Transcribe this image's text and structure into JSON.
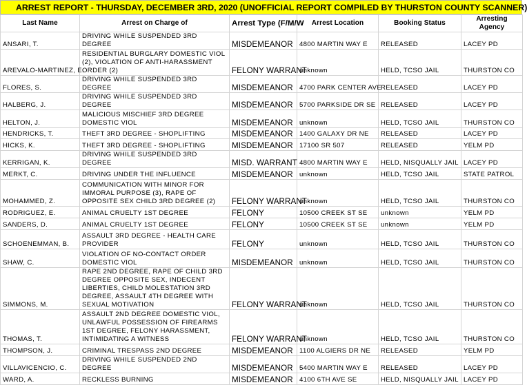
{
  "title": "ARREST REPORT - THURSDAY, DECEMBER 3RD, 2020  (UNOFFICIAL REPORT COMPILED BY THURSTON COUNTY SCANNER)",
  "header": [
    "Last Name",
    "Arrest on Charge of",
    "Arrest Type (F/M/W",
    "Arrest Location",
    "Booking Status",
    "Arresting Agency"
  ],
  "rows": [
    [
      "ANSARI, T.",
      "DRIVING WHILE SUSPENDED 3RD DEGREE",
      "MISDEMEANOR",
      "4800 MARTIN WAY E",
      "RELEASED",
      "LACEY PD"
    ],
    [
      "AREVALO-MARTINEZ, E.",
      "RESIDENTIAL BURGLARY DOMESTIC VIOL (2), VIOLATION OF ANTI-HARASSMENT ORDER (2)",
      "FELONY WARRANT",
      "unknown",
      "HELD, TCSO JAIL",
      "THURSTON CO"
    ],
    [
      "FLORES, S.",
      "DRIVING WHILE SUSPENDED 3RD DEGREE",
      "MISDEMEANOR",
      "4700 PARK CENTER AVE",
      "RELEASED",
      "LACEY PD"
    ],
    [
      "HALBERG, J.",
      "DRIVING WHILE SUSPENDED 3RD DEGREE",
      "MISDEMEANOR",
      "5700 PARKSIDE DR SE",
      "RELEASED",
      "LACEY PD"
    ],
    [
      "HELTON, J.",
      "MALICIOUS MISCHIEF 3RD DEGREE DOMESTIC VIOL",
      "MISDEMEANOR",
      "unknown",
      "HELD, TCSO JAIL",
      "THURSTON CO"
    ],
    [
      "HENDRICKS, T.",
      "THEFT 3RD DEGREE - SHOPLIFTING",
      "MISDEMEANOR",
      "1400 GALAXY DR NE",
      "RELEASED",
      "LACEY PD"
    ],
    [
      "HICKS, K.",
      "THEFT 3RD DEGREE - SHOPLIFTING",
      "MISDEMEANOR",
      "17100 SR 507",
      "RELEASED",
      "YELM PD"
    ],
    [
      "KERRIGAN, K.",
      "DRIVING WHILE SUSPENDED 3RD DEGREE",
      "MISD. WARRANT",
      "4800 MARTIN WAY E",
      "HELD, NISQUALLY JAIL",
      "LACEY PD"
    ],
    [
      "MERKT, C.",
      "DRIVING UNDER THE INFLUENCE",
      "MISDEMEANOR",
      "unknown",
      "HELD, TCSO JAIL",
      "STATE PATROL"
    ],
    [
      "MOHAMMED, Z.",
      "COMMUNICATION WITH MINOR FOR IMMORAL PURPOSE (3), RAPE OF OPPOSITE SEX CHILD 3RD DEGREE (2)",
      "FELONY WARRANT",
      "unknown",
      "HELD, TCSO JAIL",
      "THURSTON CO"
    ],
    [
      "RODRIGUEZ, E.",
      "ANIMAL CRUELTY 1ST DEGREE",
      "FELONY",
      "10500 CREEK ST SE",
      "unknown",
      "YELM PD"
    ],
    [
      "SANDERS, D.",
      "ANIMAL CRUELTY 1ST DEGREE",
      "FELONY",
      "10500 CREEK ST SE",
      "unknown",
      "YELM PD"
    ],
    [
      "SCHOENEMMAN, B.",
      "ASSAULT 3RD DEGREE - HEALTH CARE PROVIDER",
      "FELONY",
      "unknown",
      "HELD, TCSO JAIL",
      "THURSTON CO"
    ],
    [
      "SHAW, C.",
      "VIOLATION OF NO-CONTACT ORDER DOMESTIC VIOL",
      "MISDEMEANOR",
      "unknown",
      "HELD, TCSO JAIL",
      "THURSTON CO"
    ],
    [
      "SIMMONS, M.",
      "RAPE 2ND DEGREE, RAPE OF CHILD 3RD DEGREE OPPOSITE SEX, INDECENT LIBERTIES, CHILD MOLESTATION 3RD DEGREE, ASSAULT 4TH DEGREE WITH SEXUAL MOTIVATION",
      "FELONY WARRANT",
      "unknown",
      "HELD, TCSO JAIL",
      "THURSTON CO"
    ],
    [
      "THOMAS, T.",
      "ASSAULT 2ND DEGREE DOMESTIC VIOL, UNLAWFUL POSSESSION OF FIREARMS 1ST DEGREE, FELONY HARASSMENT, INTIMIDATING A WITNESS",
      "FELONY WARRANT",
      "unknown",
      "HELD, TCSO JAIL",
      "THURSTON CO"
    ],
    [
      "THOMPSON, J.",
      "CRIMINAL TRESPASS 2ND DEGREE",
      "MISDEMEANOR",
      "1100 ALGIERS DR NE",
      "RELEASED",
      "YELM PD"
    ],
    [
      "VILLAVICENCIO, C.",
      "DRIVING WHILE SUSPENDED 2ND DEGREE",
      "MISDEMEANOR",
      "5400 MARTIN WAY E",
      "RELEASED",
      "LACEY PD"
    ],
    [
      "WARD, A.",
      "RECKLESS BURNING",
      "MISDEMEANOR",
      "4100 6TH AVE SE",
      "HELD, NISQUALLY JAIL",
      "LACEY PD"
    ]
  ]
}
